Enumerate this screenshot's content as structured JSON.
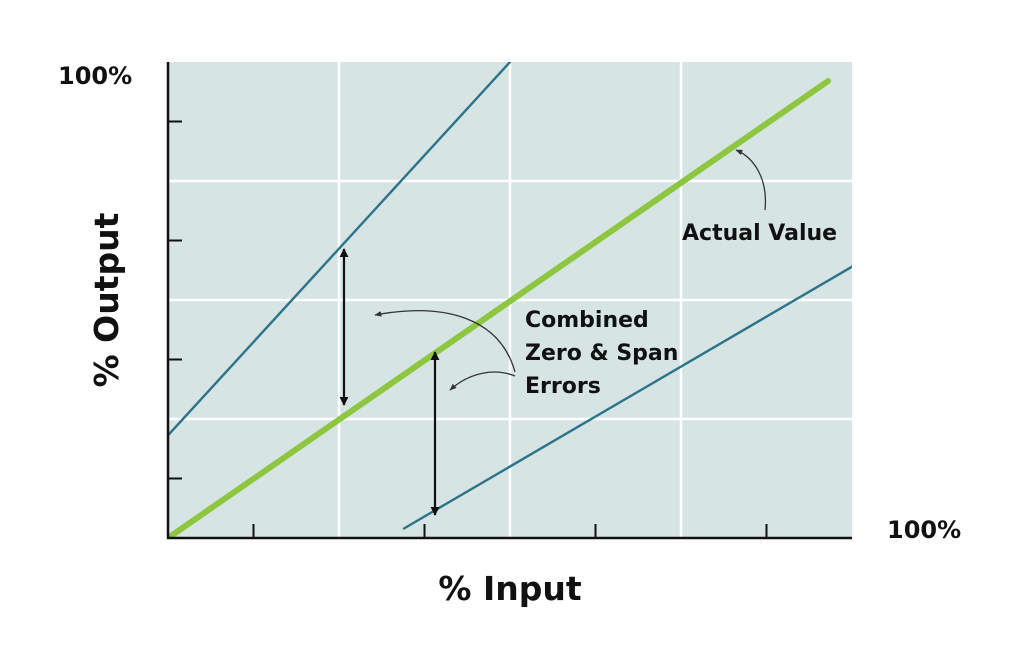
{
  "chart_data": {
    "type": "line",
    "title": "",
    "xlabel": "% Input",
    "ylabel": "% Output",
    "x_max_label": "100%",
    "y_max_label": "100%",
    "xlim": [
      0,
      100
    ],
    "ylim": [
      0,
      100
    ],
    "grid": true,
    "legend": "none",
    "series": [
      {
        "role": "actual",
        "color": "#8dc63f",
        "x": [
          0,
          96.5
        ],
        "y": [
          0,
          96
        ]
      },
      {
        "role": "upper-error",
        "color": "#2d7389",
        "x": [
          -1,
          50
        ],
        "y": [
          20,
          100
        ]
      },
      {
        "role": "lower-error",
        "color": "#2d7389",
        "x": [
          34.5,
          100
        ],
        "y": [
          2,
          57
        ]
      }
    ],
    "annotations": {
      "actual_value": "Actual Value",
      "errors": [
        "Combined",
        "Zero & Span",
        "Errors"
      ]
    }
  },
  "colors": {
    "plot_background": "#d6e4e4",
    "grid": "#ffffff",
    "axis": "#111111",
    "actual": "#8dc63f",
    "error": "#2d7389"
  }
}
